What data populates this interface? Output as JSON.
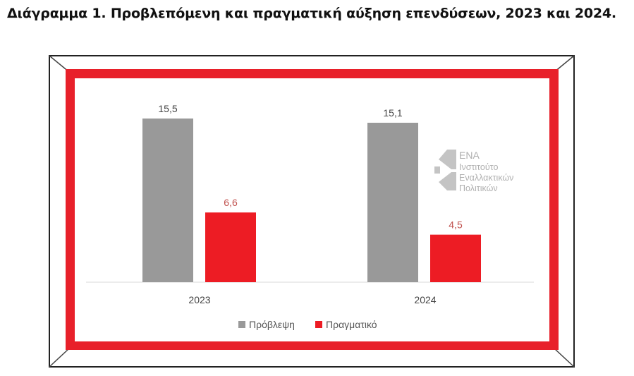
{
  "page_title": "Διάγραμμα 1. Προβλεπόμενη και πραγματική αύξηση επενδύσεων, 2023 και 2024.",
  "colors": {
    "frame_red": "#e8202a",
    "forecast": "#999999",
    "actual": "#ed1c24",
    "actual_label": "#c0504d"
  },
  "logo": {
    "title": "ΕΝΑ",
    "line1": "Ινστιτούτο",
    "line2": "Εναλλακτικών",
    "line3": "Πολιτικών"
  },
  "chart_data": {
    "type": "bar",
    "title": "Προβλεπόμενη και πραγματική αύξηση επενδύσεων, 2023 και 2024",
    "categories": [
      "2023",
      "2024"
    ],
    "series": [
      {
        "name": "Πρόβλεψη",
        "values": [
          15.5,
          15.1
        ],
        "labels": [
          "15,5",
          "15,1"
        ],
        "color": "#999999"
      },
      {
        "name": "Πραγματικό",
        "values": [
          6.6,
          4.5
        ],
        "labels": [
          "6,6",
          "4,5"
        ],
        "color": "#ed1c24"
      }
    ],
    "xlabel": "",
    "ylabel": "",
    "ylim": [
      0,
      15.5
    ],
    "grid": false,
    "legend": "bottom-center"
  }
}
